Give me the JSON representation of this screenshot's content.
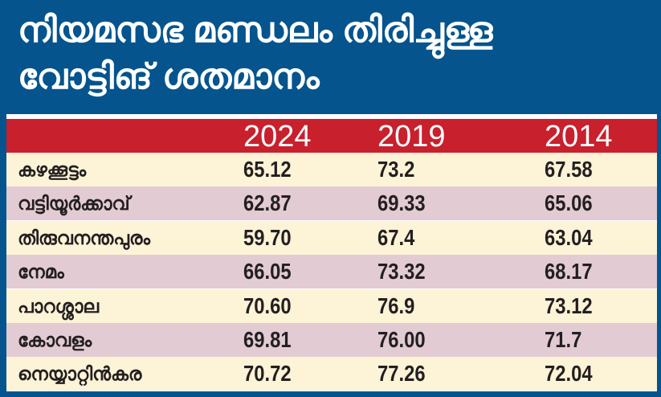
{
  "title_lines": [
    "നിയമസഭ മണ്ഡലം തിരിച്ചുള്ള",
    "വോട്ടിങ് ശതമാനം"
  ],
  "colors": {
    "background": "#05548d",
    "header": "#c8202d",
    "row_light": "#fdf3d7",
    "row_dark": "#e2cbd2"
  },
  "chart_data": {
    "type": "table",
    "columns": [
      "2024",
      "2019",
      "2014"
    ],
    "rows": [
      {
        "label": "കഴക്കൂട്ടം",
        "values": [
          "65.12",
          "73.2",
          "67.58"
        ]
      },
      {
        "label": "വട്ടിയൂർക്കാവ്",
        "values": [
          "62.87",
          "69.33",
          "65.06"
        ]
      },
      {
        "label": "തിരുവനന്തപുരം",
        "values": [
          "59.70",
          "67.4",
          "63.04"
        ]
      },
      {
        "label": "നേമം",
        "values": [
          "66.05",
          "73.32",
          "68.17"
        ]
      },
      {
        "label": "പാറശ്ശാല",
        "values": [
          "70.60",
          "76.9",
          "73.12"
        ]
      },
      {
        "label": "കോവളം",
        "values": [
          "69.81",
          "76.00",
          "71.7"
        ]
      },
      {
        "label": "നെയ്യാറ്റിൻകര",
        "values": [
          "70.72",
          "77.26",
          "72.04"
        ]
      }
    ]
  }
}
